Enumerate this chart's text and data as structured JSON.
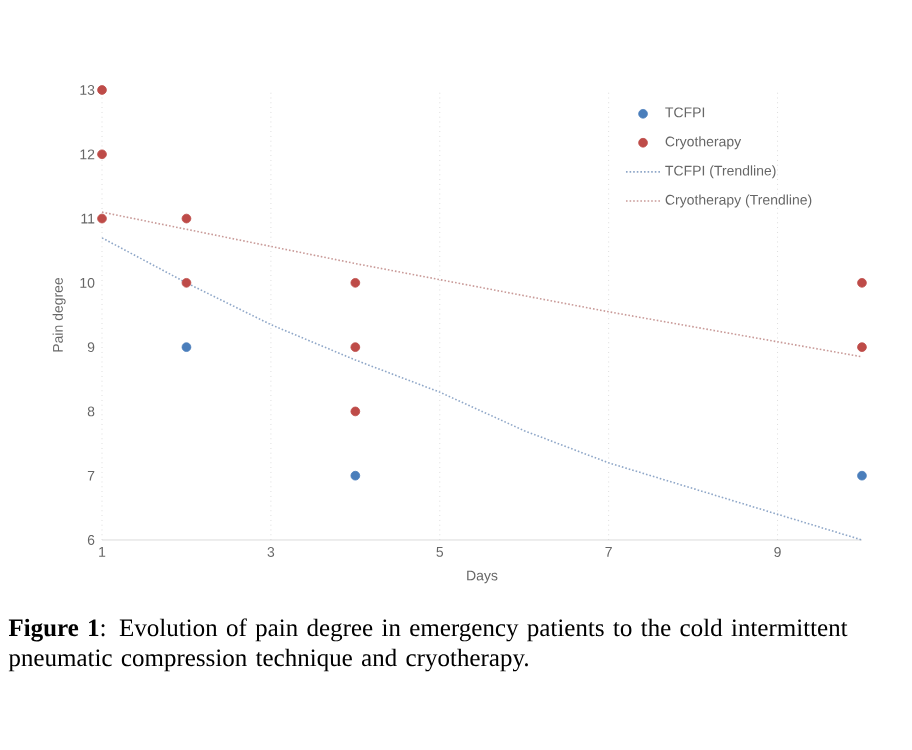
{
  "chart_data": {
    "type": "scatter",
    "xlabel": "Days",
    "ylabel": "Pain degree",
    "xlim": [
      1,
      10
    ],
    "ylim": [
      6,
      13
    ],
    "xticks": [
      1,
      3,
      5,
      7,
      9
    ],
    "yticks": [
      6,
      7,
      8,
      9,
      10,
      11,
      12,
      13
    ],
    "grid": "x",
    "legend": "top right",
    "marker": "circle",
    "series": [
      {
        "name": "TCFPI",
        "color": "#4a7ebb",
        "x": [
          2,
          4,
          10
        ],
        "values": [
          9,
          7,
          7
        ]
      },
      {
        "name": "Cryotherapy",
        "color": "#be4b48",
        "x": [
          1,
          1,
          1,
          2,
          2,
          4,
          4,
          4,
          10,
          10
        ],
        "values": [
          11,
          12,
          13,
          11,
          10,
          10,
          9,
          8,
          10,
          9
        ]
      },
      {
        "name": "TCFPI (Trendline)",
        "type": "line",
        "line_style": "dotted",
        "marker": "none",
        "color": "#8fa7c8",
        "x": [
          1,
          2,
          3,
          4,
          5,
          6,
          7,
          8,
          9,
          10
        ],
        "values": [
          10.7,
          10.0,
          9.35,
          8.8,
          8.3,
          7.7,
          7.2,
          6.8,
          6.4,
          6.0
        ]
      },
      {
        "name": "Cryotherapy (Trendline)",
        "type": "line",
        "line_style": "dotted",
        "marker": "none",
        "color": "#c99a98",
        "x": [
          1,
          4,
          7,
          10
        ],
        "values": [
          11.1,
          10.3,
          9.55,
          8.85
        ]
      }
    ],
    "annotations": [
      "**Figure 1**: Evolution of pain degree in emergency patients to the cold intermittent pneumatic compression technique and cryotherapy."
    ]
  }
}
